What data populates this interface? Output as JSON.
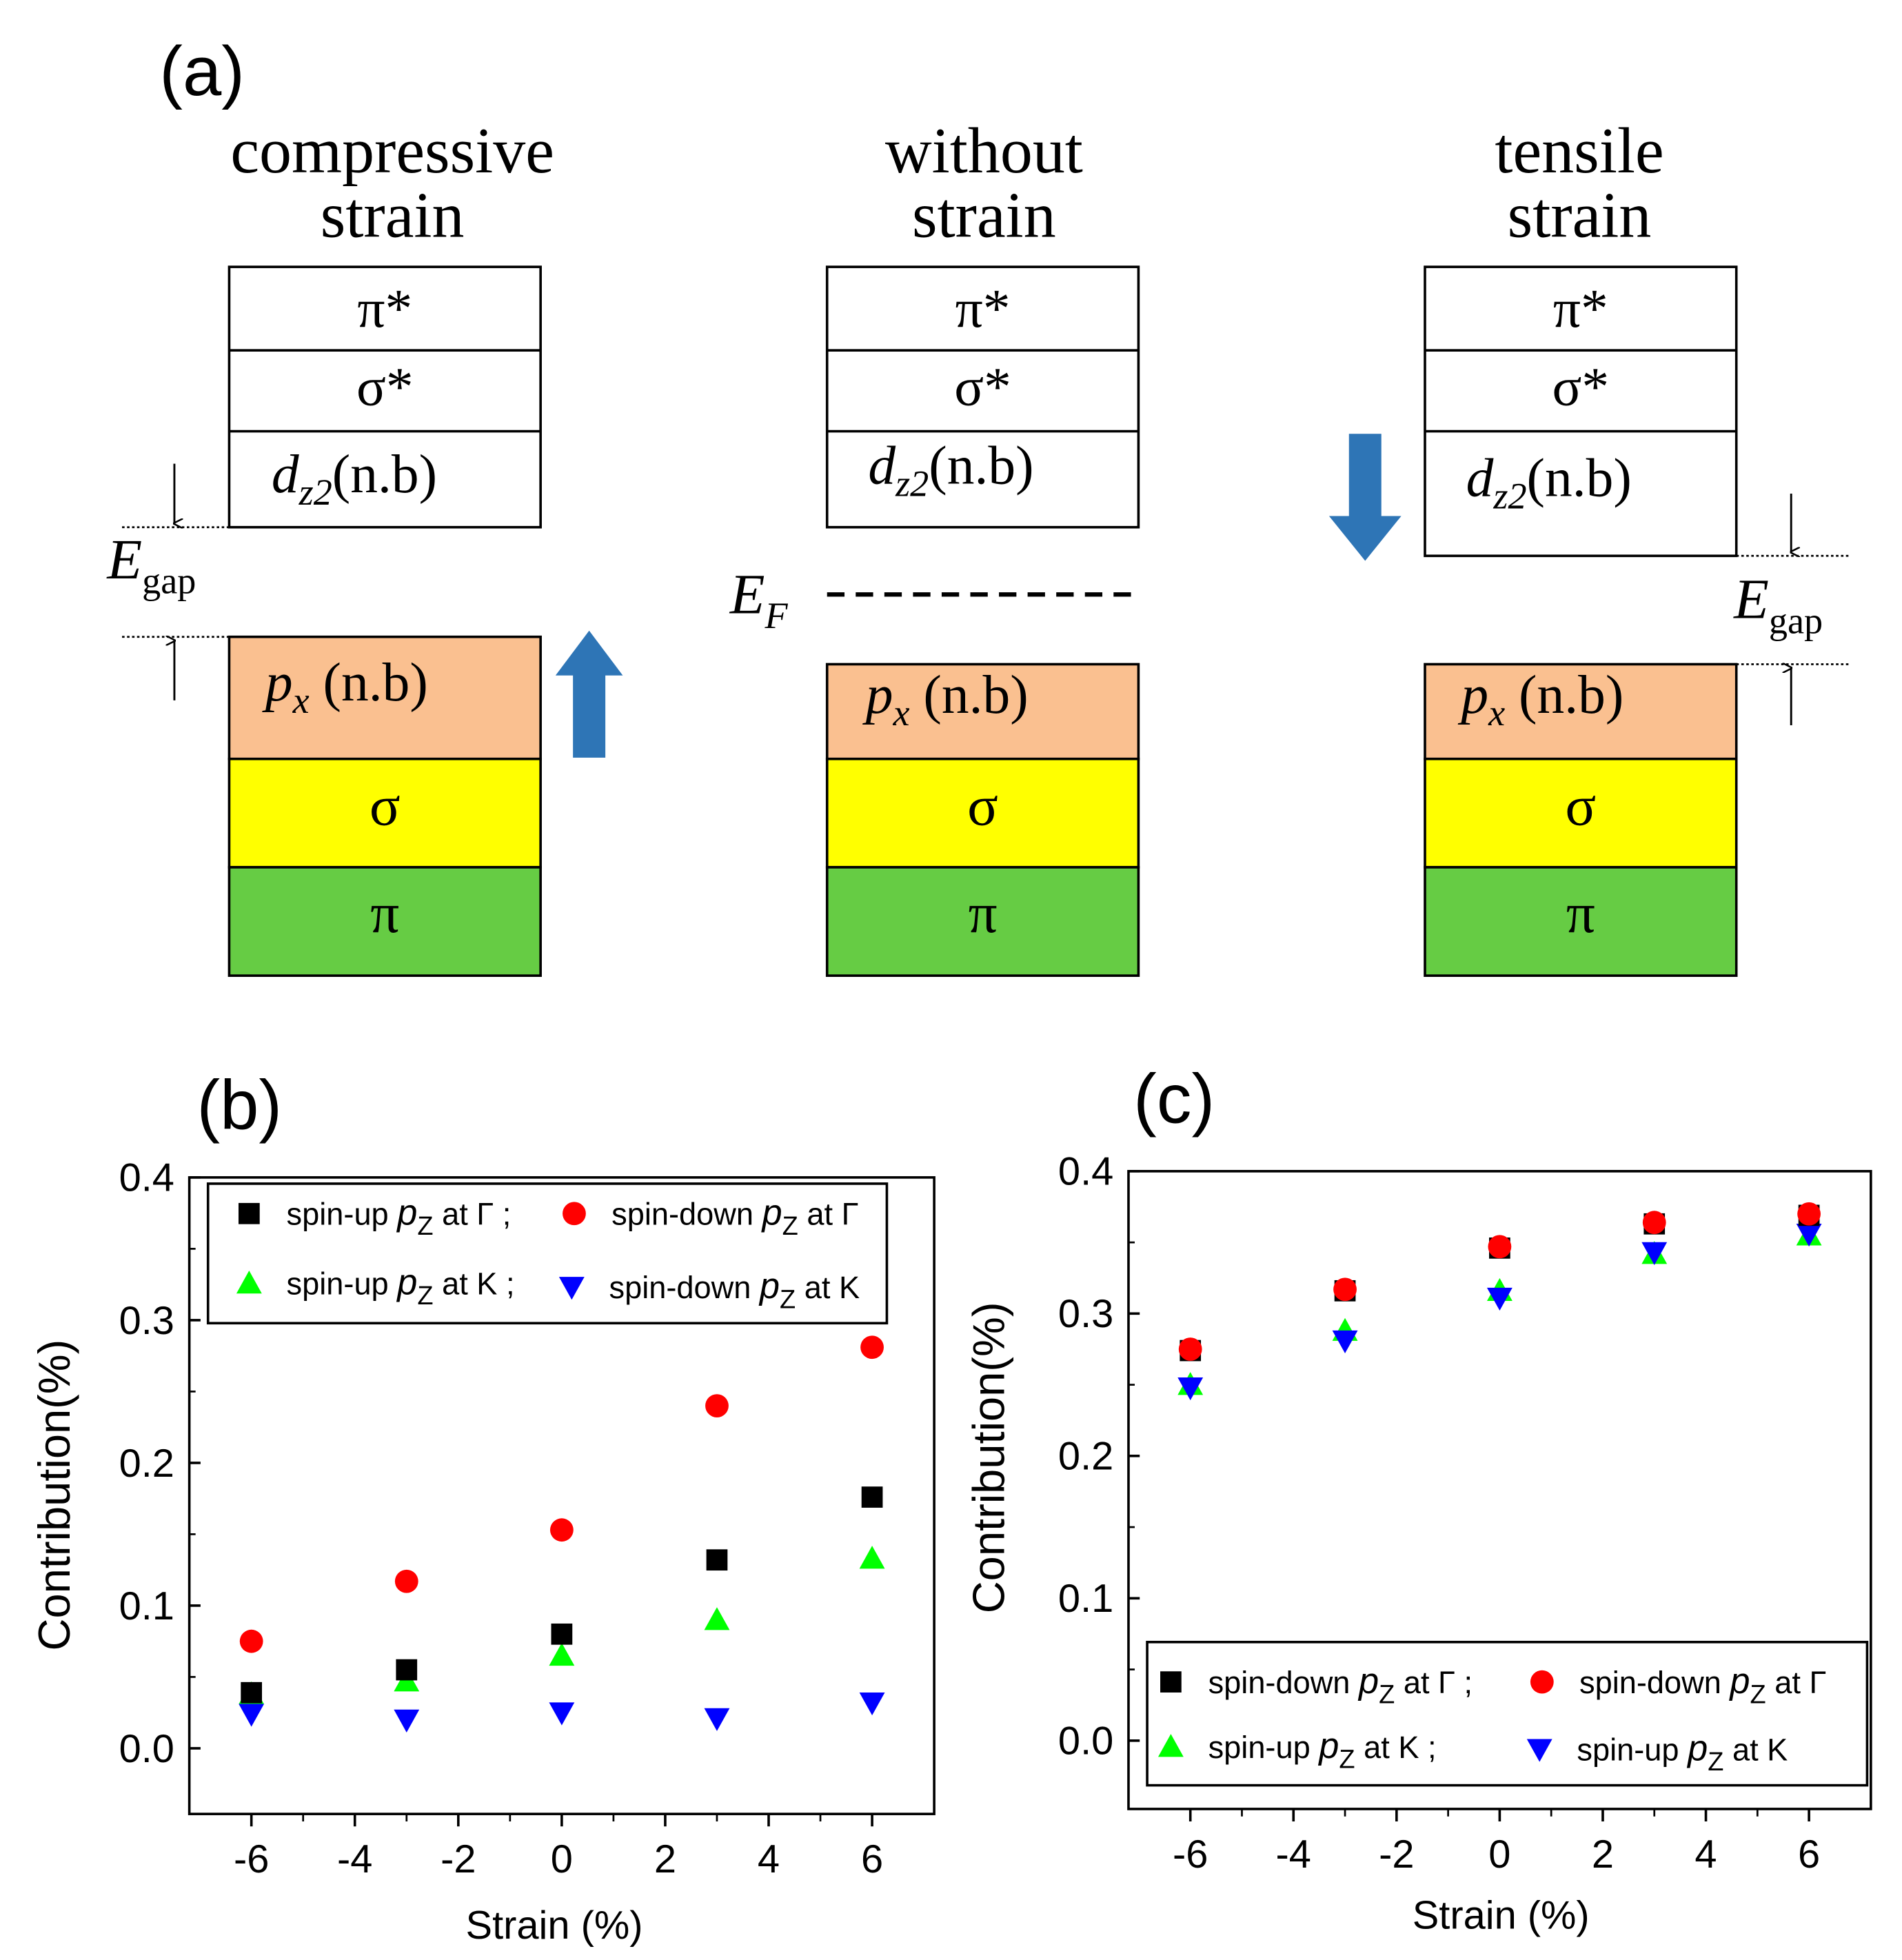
{
  "panel_a": {
    "label": "(a)",
    "columns": [
      {
        "title1": "compressive",
        "title2": "strain"
      },
      {
        "title1": "without",
        "title2": "strain"
      },
      {
        "title1": "tensile",
        "title2": "strain"
      }
    ],
    "bands": {
      "pi_star": "π*",
      "sigma_star": "σ*",
      "dz2_main": "d",
      "dz2_sub": "z2",
      "dz2_tail": "(n.b)",
      "px_main": "p",
      "px_sub": "x",
      "px_tail": " (n.b)",
      "sigma": "σ",
      "pi": "π"
    },
    "egap_main": "E",
    "egap_sub": "gap",
    "ef_main": "E",
    "ef_sub": "F",
    "colors": {
      "px": "#FAC090",
      "sigma": "#FFFF00",
      "pi": "#66CC44",
      "arrow": "#2E75B6"
    }
  },
  "chart_data": [
    {
      "type": "scatter",
      "panel_label": "(b)",
      "xlabel": "Strain (%)",
      "ylabel": "Contribution(%)",
      "xlim": [
        -7.2,
        7.2
      ],
      "ylim": [
        -0.046,
        0.4
      ],
      "xticks": [
        -6,
        -4,
        -2,
        0,
        2,
        4,
        6
      ],
      "xtick_labels": [
        "-6",
        "-4",
        "-2",
        "0",
        "2",
        "4",
        "6"
      ],
      "yticks": [
        0.0,
        0.1,
        0.2,
        0.3,
        0.4
      ],
      "ytick_labels": [
        "0.0",
        "0.1",
        "0.2",
        "0.3",
        "0.4"
      ],
      "x": [
        -6,
        -3,
        0,
        3,
        6
      ],
      "legend": [
        {
          "prefix": "spin-up ",
          "orb": "p",
          "sub": "Z",
          "suffix": " at Γ ;"
        },
        {
          "prefix": "spin-down ",
          "orb": "p",
          "sub": "Z",
          "suffix": " at Γ"
        },
        {
          "prefix": "spin-up ",
          "orb": "p",
          "sub": "Z",
          "suffix": " at K ;"
        },
        {
          "prefix": "spin-down ",
          "orb": "p",
          "sub": "Z",
          "suffix": " at K"
        }
      ],
      "series": [
        {
          "marker": "square",
          "color": "#000000",
          "values": [
            0.039,
            0.055,
            0.08,
            0.132,
            0.176
          ]
        },
        {
          "marker": "circle",
          "color": "#FF0000",
          "values": [
            0.075,
            0.117,
            0.153,
            0.24,
            0.281
          ]
        },
        {
          "marker": "triangle-up",
          "color": "#00FF00",
          "values": [
            0.038,
            0.047,
            0.065,
            0.09,
            0.133
          ]
        },
        {
          "marker": "triangle-down",
          "color": "#0000FF",
          "values": [
            0.024,
            0.02,
            0.025,
            0.021,
            0.032
          ]
        }
      ]
    },
    {
      "type": "scatter",
      "panel_label": "(c)",
      "xlabel": "Strain (%)",
      "ylabel": "Contribution(%)",
      "xlim": [
        -7.2,
        7.2
      ],
      "ylim": [
        -0.048,
        0.4
      ],
      "xticks": [
        -6,
        -4,
        -2,
        0,
        2,
        4,
        6
      ],
      "xtick_labels": [
        "-6",
        "-4",
        "-2",
        "0",
        "2",
        "4",
        "6"
      ],
      "yticks": [
        0.0,
        0.1,
        0.2,
        0.3,
        0.4
      ],
      "ytick_labels": [
        "0.0",
        "0.1",
        "0.2",
        "0.3",
        "0.4"
      ],
      "x": [
        -6,
        -3,
        0,
        3,
        6
      ],
      "legend": [
        {
          "prefix": "spin-down ",
          "orb": "p",
          "sub": "Z",
          "suffix": " at Γ ;"
        },
        {
          "prefix": "spin-down ",
          "orb": "p",
          "sub": "Z",
          "suffix": " at Γ"
        },
        {
          "prefix": "spin-up ",
          "orb": "p",
          "sub": "Z",
          "suffix": " at K ;"
        },
        {
          "prefix": "spin-up ",
          "orb": "p",
          "sub": "Z",
          "suffix": " at K"
        }
      ],
      "series": [
        {
          "marker": "square",
          "color": "#000000",
          "values": [
            0.274,
            0.316,
            0.346,
            0.363,
            0.369
          ]
        },
        {
          "marker": "circle",
          "color": "#FF0000",
          "values": [
            0.275,
            0.317,
            0.347,
            0.364,
            0.37
          ]
        },
        {
          "marker": "triangle-up",
          "color": "#00FF00",
          "values": [
            0.25,
            0.288,
            0.316,
            0.342,
            0.355
          ]
        },
        {
          "marker": "triangle-down",
          "color": "#0000FF",
          "values": [
            0.248,
            0.281,
            0.311,
            0.343,
            0.356
          ]
        }
      ]
    }
  ]
}
